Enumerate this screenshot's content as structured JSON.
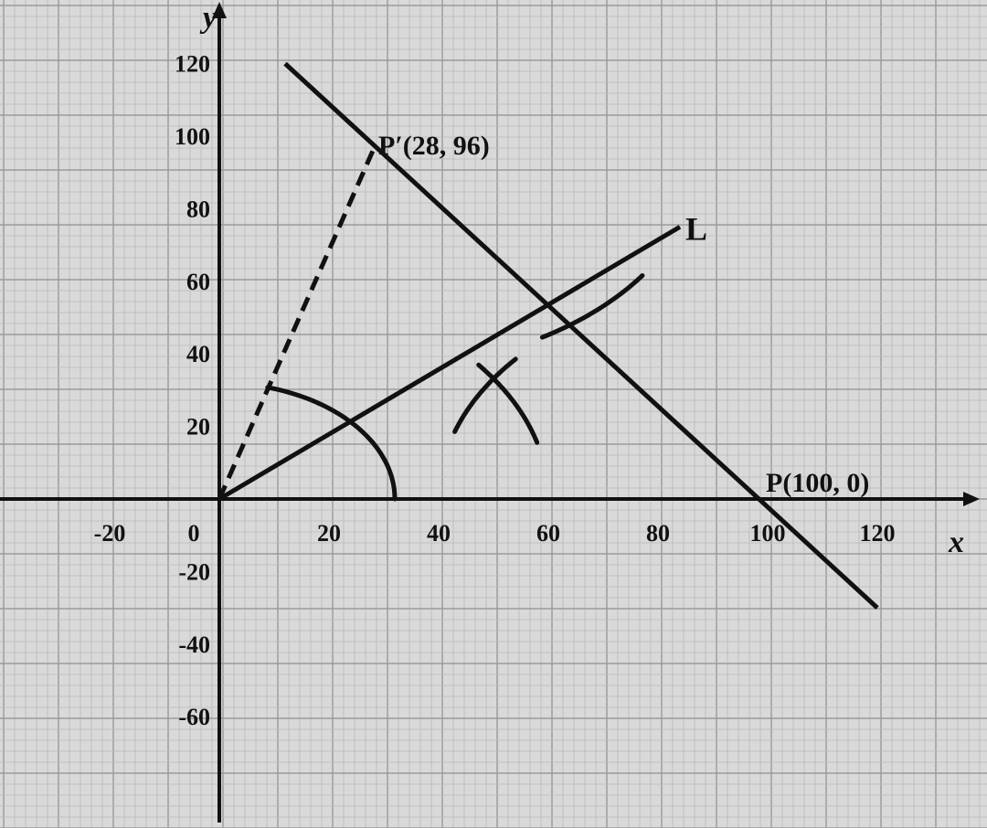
{
  "diagram": {
    "x_axis": {
      "name": "x",
      "ticks": [
        {
          "value": -20,
          "label": "-20"
        },
        {
          "value": 0,
          "label": "0"
        },
        {
          "value": 20,
          "label": "20"
        },
        {
          "value": 40,
          "label": "40"
        },
        {
          "value": 60,
          "label": "60"
        },
        {
          "value": 80,
          "label": "80"
        },
        {
          "value": 100,
          "label": "100"
        },
        {
          "value": 120,
          "label": "120"
        }
      ]
    },
    "y_axis": {
      "name": "y",
      "ticks": [
        {
          "value": 120,
          "label": "120"
        },
        {
          "value": 100,
          "label": "100"
        },
        {
          "value": 80,
          "label": "80"
        },
        {
          "value": 60,
          "label": "60"
        },
        {
          "value": 40,
          "label": "40"
        },
        {
          "value": 20,
          "label": "20"
        },
        {
          "value": -20,
          "label": "-20"
        },
        {
          "value": -40,
          "label": "-40"
        },
        {
          "value": -60,
          "label": "-60"
        }
      ]
    },
    "points": {
      "p_prime": {
        "label": "P′(28, 96)",
        "x": 28,
        "y": 96
      },
      "p": {
        "label": "P(100, 0)",
        "x": 100,
        "y": 0
      }
    },
    "line_L": {
      "label": "L",
      "from": [
        0,
        0
      ],
      "to": [
        84,
        75
      ]
    },
    "perpendicular_line": {
      "from": [
        12,
        120
      ],
      "to": [
        120,
        -30
      ]
    },
    "dashed_segment": {
      "from": [
        0,
        0
      ],
      "to": [
        28,
        96
      ]
    },
    "construction_arcs": [
      {
        "center": [
          0,
          0
        ],
        "radius": 32,
        "from_deg": 0,
        "to_deg": 74
      },
      {
        "center": [
          0,
          0
        ],
        "radius": 60,
        "from_deg": 15,
        "to_deg": 38
      },
      {
        "center": [
          28,
          96
        ],
        "radius": 60,
        "from_deg": -59,
        "to_deg": -35
      },
      {
        "center": [
          100,
          0
        ],
        "radius": 60,
        "from_deg": 140,
        "to_deg": 162
      }
    ],
    "colors": {
      "paper": "#d9d9d9",
      "grid_fine": "#b9b9b9",
      "grid_major": "#9a9a9a",
      "ink": "#111111"
    }
  }
}
